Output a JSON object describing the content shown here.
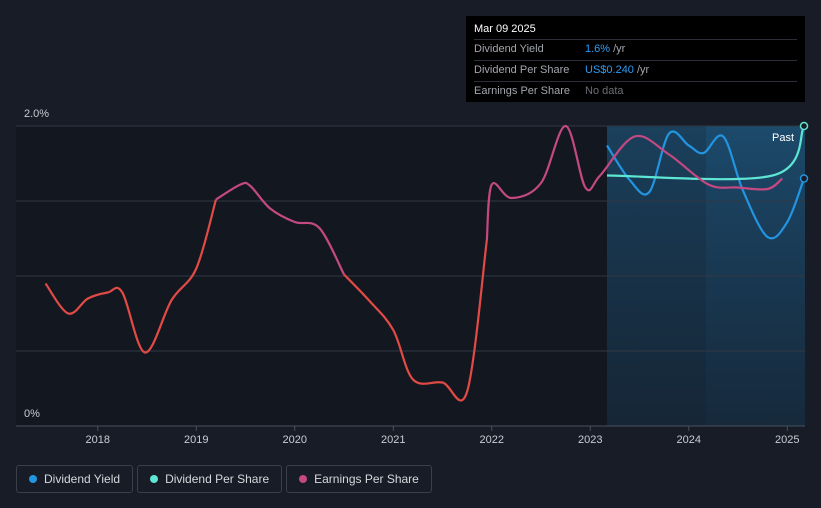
{
  "chart_data": {
    "type": "line",
    "xlim": [
      2017.17,
      2025.18
    ],
    "xticks": [
      2018,
      2019,
      2020,
      2021,
      2022,
      2023,
      2024,
      2025
    ],
    "ylim": [
      0,
      2
    ],
    "yticks": [
      {
        "value": 0,
        "label": "0%"
      },
      {
        "value": 2,
        "label": "2.0%"
      }
    ],
    "ygrid": [
      0.5,
      1,
      1.5,
      2
    ],
    "annotation": "Past",
    "series": [
      {
        "name": "Dividend Yield",
        "color": "#2394df",
        "x": [
          2023.17,
          2023.4,
          2023.6,
          2023.8,
          2024.0,
          2024.15,
          2024.35,
          2024.55,
          2024.8,
          2025.0,
          2025.17
        ],
        "values": [
          1.87,
          1.64,
          1.56,
          1.95,
          1.87,
          1.82,
          1.93,
          1.57,
          1.26,
          1.36,
          1.65
        ]
      },
      {
        "name": "Dividend Per Share",
        "color": "#5ee5d3",
        "x": [
          2023.17,
          2024.85,
          2025.17
        ],
        "values": [
          1.67,
          1.67,
          2.0
        ]
      },
      {
        "name": "Earnings Per Share",
        "color": "#c44882",
        "x": [
          2017.47,
          2017.7,
          2017.9,
          2018.1,
          2018.25,
          2018.48,
          2018.75,
          2019.0,
          2019.2,
          2019.45,
          2019.55,
          2019.75,
          2020.0,
          2020.25,
          2020.5,
          2020.75,
          2021.0,
          2021.2,
          2021.5,
          2021.75,
          2021.95,
          2022.0,
          2022.2,
          2022.5,
          2022.75,
          2022.95,
          2023.1,
          2023.45,
          2023.8,
          2024.2,
          2024.5,
          2024.8,
          2024.95
        ],
        "values": [
          0.95,
          0.75,
          0.85,
          0.89,
          0.89,
          0.49,
          0.84,
          1.05,
          1.51,
          1.61,
          1.6,
          1.45,
          1.36,
          1.32,
          1.01,
          0.84,
          0.64,
          0.31,
          0.29,
          0.23,
          1.24,
          1.61,
          1.52,
          1.62,
          2.0,
          1.59,
          1.67,
          1.93,
          1.81,
          1.61,
          1.59,
          1.58,
          1.65
        ],
        "colors": [
          "#e24a45",
          "#e24a45",
          "#e24a45",
          "#e24a45",
          "#e24a45",
          "#e24a45",
          "#e24a45",
          "#e24a45",
          "#c44882",
          "#c44882",
          "#c44882",
          "#c44882",
          "#c44882",
          "#c44882",
          "#e24a45",
          "#e24a45",
          "#e24a45",
          "#e24a45",
          "#e24a45",
          "#e24a45",
          "#c44882",
          "#c44882",
          "#c44882",
          "#c44882",
          "#c44882",
          "#c44882",
          "#c44882",
          "#c44882",
          "#c44882",
          "#c44882",
          "#c44882",
          "#c44882",
          "#c44882"
        ]
      }
    ]
  },
  "tooltip": {
    "date": "Mar 09 2025",
    "rows": [
      {
        "label": "Dividend Yield",
        "value": "1.6%",
        "unit": "/yr"
      },
      {
        "label": "Dividend Per Share",
        "value": "US$0.240",
        "unit": "/yr"
      },
      {
        "label": "Earnings Per Share",
        "value": "No data"
      }
    ]
  }
}
